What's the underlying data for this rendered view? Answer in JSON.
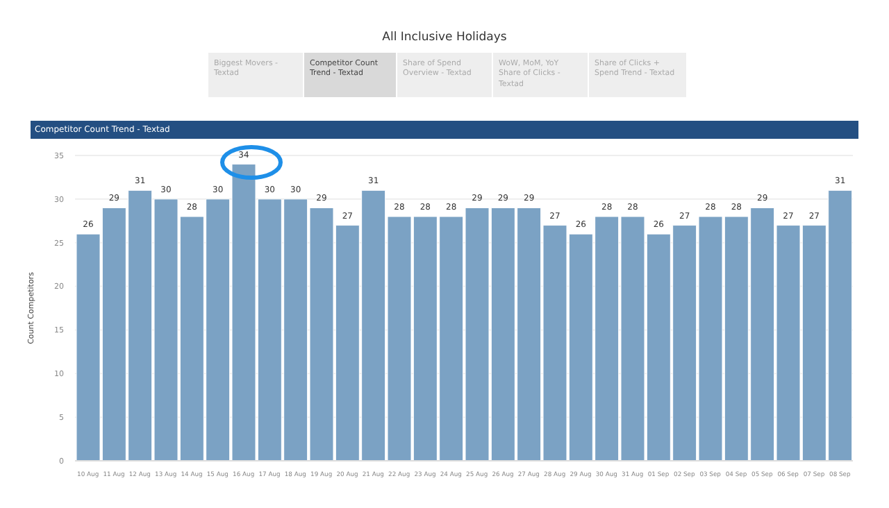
{
  "chart_data": {
    "type": "bar",
    "title": "All Inclusive Holidays",
    "subtitle": "Competitor Count Trend - Textad",
    "ylabel": "Count Competitors",
    "annotations": [
      "Biggest Movers - Textad",
      "Competitor Count Trend - Textad",
      "Share of Spend Overview - Textad",
      "WoW, MoM, YoY Share of Clicks - Textad",
      "Share of Clicks + Spend Trend - Textad"
    ],
    "categories": [
      "10 Aug",
      "11 Aug",
      "12 Aug",
      "13 Aug",
      "14 Aug",
      "15 Aug",
      "16 Aug",
      "17 Aug",
      "18 Aug",
      "19 Aug",
      "20 Aug",
      "21 Aug",
      "22 Aug",
      "23 Aug",
      "24 Aug",
      "25 Aug",
      "26 Aug",
      "27 Aug",
      "28 Aug",
      "29 Aug",
      "30 Aug",
      "31 Aug",
      "01 Sep",
      "02 Sep",
      "03 Sep",
      "04 Sep",
      "05 Sep",
      "06 Sep",
      "07 Sep",
      "08 Sep"
    ],
    "values": [
      26,
      29,
      31,
      30,
      28,
      30,
      34,
      30,
      30,
      29,
      27,
      31,
      28,
      28,
      28,
      29,
      29,
      29,
      27,
      26,
      28,
      28,
      26,
      27,
      28,
      28,
      29,
      27,
      27,
      31
    ],
    "color": "#7ba2c4",
    "ylim": [
      0,
      35
    ],
    "yticks": [
      0,
      5,
      10,
      15,
      20,
      25,
      30,
      35
    ],
    "grid": "y",
    "data_labels": true
  }
}
